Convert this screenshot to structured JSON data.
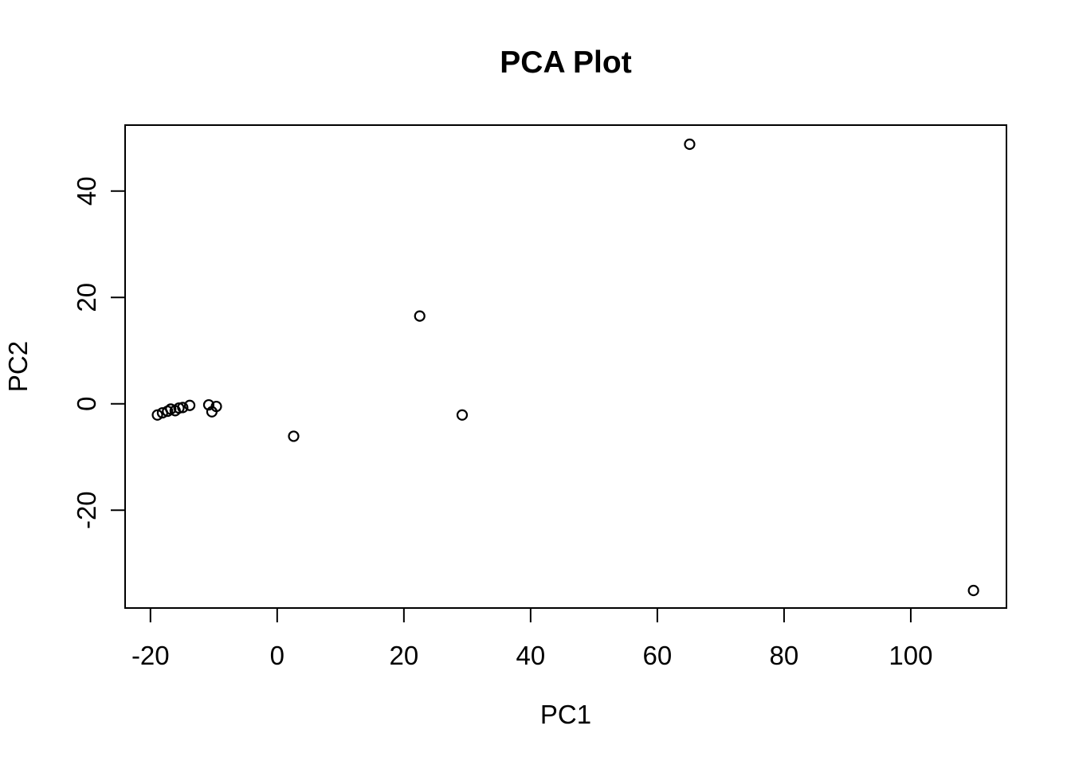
{
  "figure": {
    "title": "PCA Plot",
    "x_axis_label": "PC1",
    "y_axis_label": "PC2"
  },
  "chart_data": {
    "type": "scatter",
    "title": "PCA Plot",
    "xlabel": "PC1",
    "ylabel": "PC2",
    "xlim": [
      -24,
      115.1
    ],
    "ylim": [
      -38.4,
      52.4
    ],
    "x_ticks": [
      -20,
      0,
      20,
      40,
      60,
      80,
      100
    ],
    "y_ticks": [
      -20,
      0,
      20,
      40
    ],
    "grid": false,
    "legend": "none",
    "marker": "open-circle",
    "marker_color": "#000000",
    "background_color": "#ffffff",
    "points": [
      [
        -18.9,
        -2.1
      ],
      [
        -18.1,
        -1.7
      ],
      [
        -17.3,
        -1.4
      ],
      [
        -16.8,
        -1.0
      ],
      [
        -16.1,
        -1.3
      ],
      [
        -15.5,
        -0.8
      ],
      [
        -14.9,
        -0.7
      ],
      [
        -13.8,
        -0.3
      ],
      [
        -10.8,
        -0.2
      ],
      [
        -9.6,
        -0.5
      ],
      [
        -10.3,
        -1.5
      ],
      [
        2.6,
        -6.1
      ],
      [
        22.5,
        16.5
      ],
      [
        29.2,
        -2.1
      ],
      [
        65.1,
        48.8
      ],
      [
        109.9,
        -35.1
      ]
    ]
  }
}
